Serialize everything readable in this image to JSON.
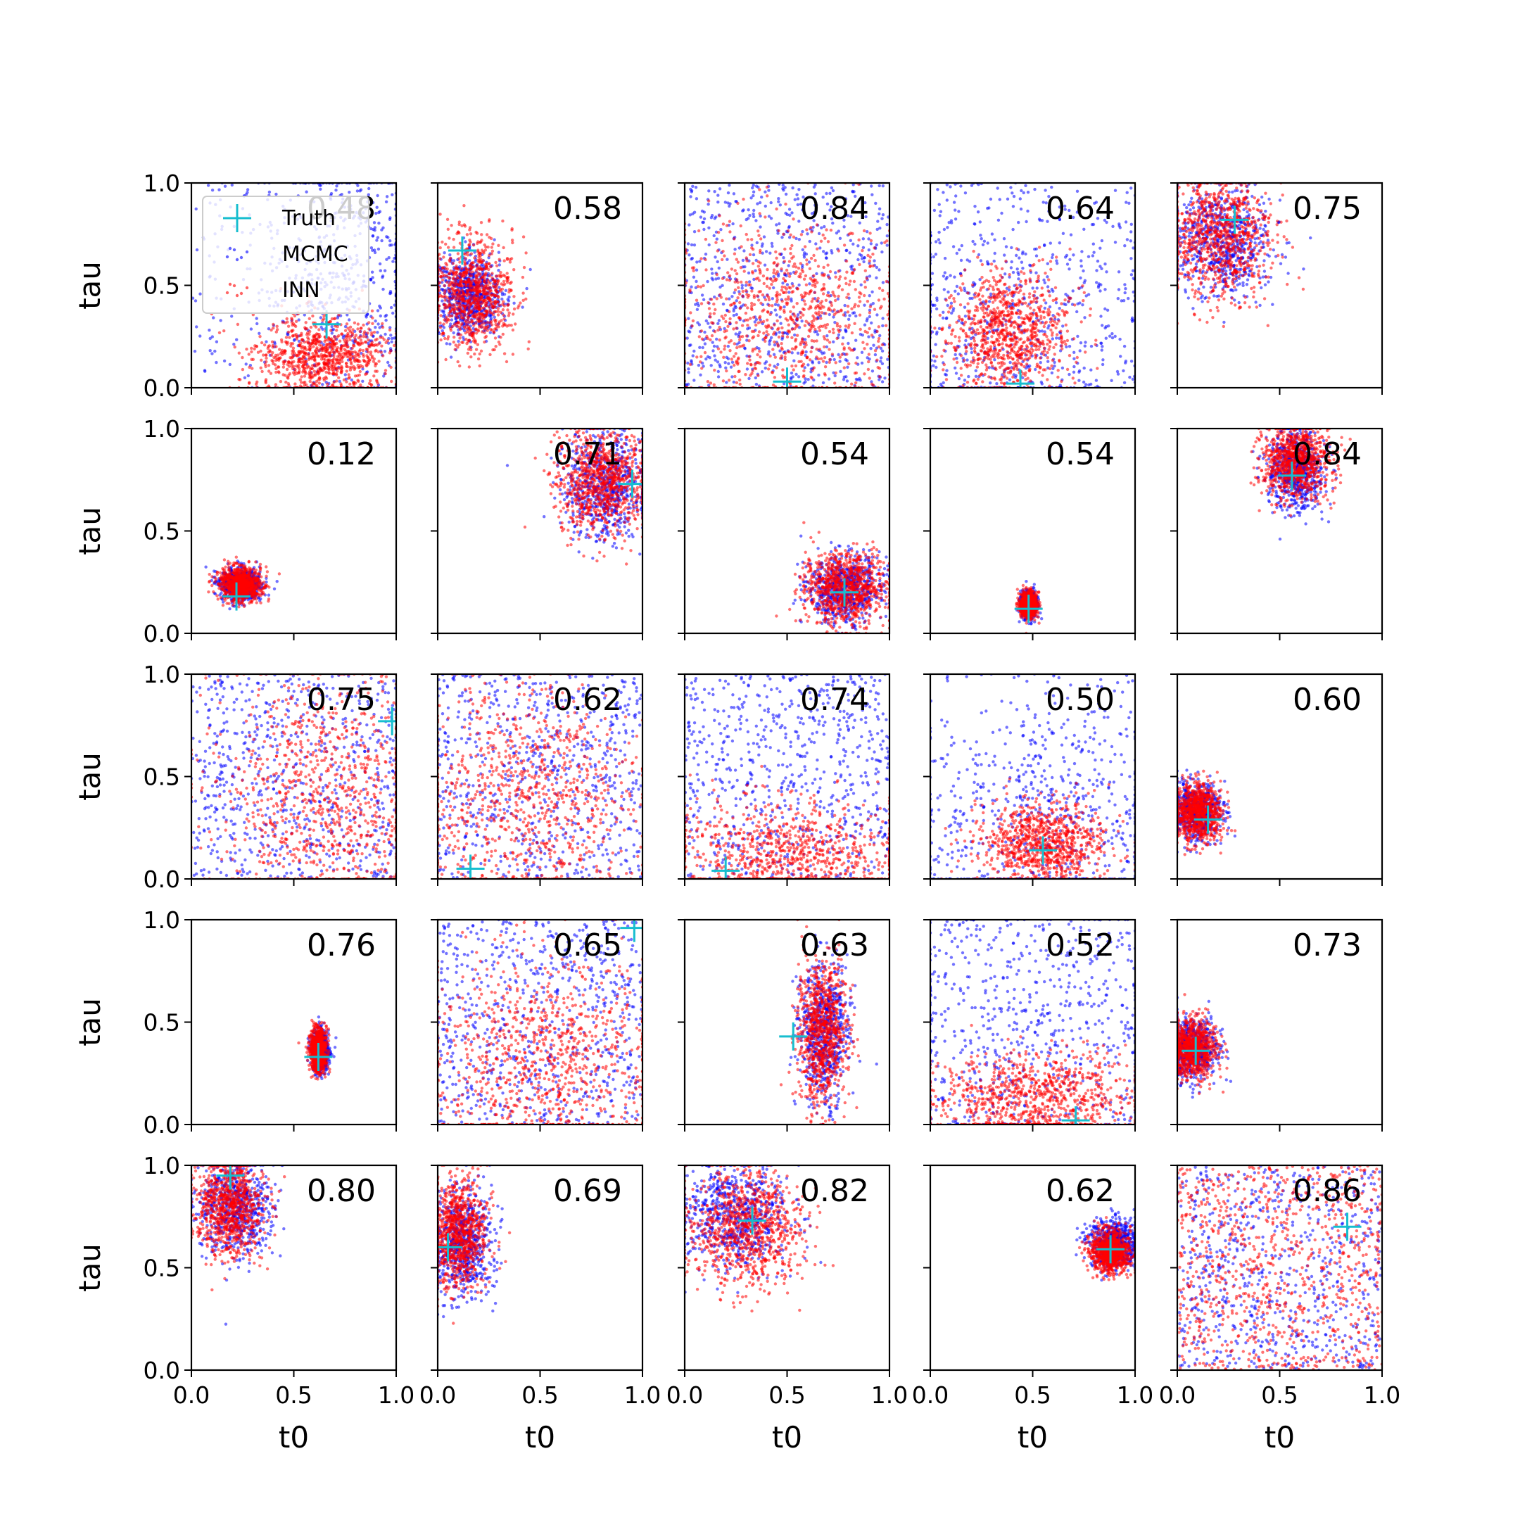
{
  "chart_data": {
    "type": "scatter",
    "layout": "5x5 grid of scatter subplots",
    "xlabel": "t0",
    "ylabel": "tau",
    "xlim": [
      0,
      1
    ],
    "ylim": [
      0,
      1
    ],
    "x_ticks": [
      "0.0",
      "0.5",
      "1.0"
    ],
    "y_ticks": [
      "0.0",
      "0.5",
      "1.0"
    ],
    "grid": false,
    "legend_position": "top-left (first subplot)",
    "legend": [
      {
        "label": "Truth",
        "marker": "+",
        "color": "#17becf"
      },
      {
        "label": "MCMC",
        "marker": "point",
        "color": "#0000ff"
      },
      {
        "label": "INN",
        "marker": "point",
        "color": "#ff0000"
      }
    ],
    "panels": [
      {
        "value": "0.48",
        "truth": [
          0.66,
          0.31
        ],
        "mcmc": {
          "cx": 0.75,
          "cy": 0.55,
          "sx": 0.2,
          "sy": 0.35,
          "uniform": 0.3
        },
        "inn": {
          "cx": 0.64,
          "cy": 0.15,
          "sx": 0.16,
          "sy": 0.1
        }
      },
      {
        "value": "0.58",
        "truth": [
          0.12,
          0.67
        ],
        "mcmc": {
          "cx": 0.15,
          "cy": 0.45,
          "sx": 0.08,
          "sy": 0.1
        },
        "inn": {
          "cx": 0.17,
          "cy": 0.46,
          "sx": 0.1,
          "sy": 0.13
        }
      },
      {
        "value": "0.84",
        "truth": [
          0.5,
          0.03
        ],
        "mcmc": {
          "cx": 0.5,
          "cy": 0.5,
          "sx": 0.5,
          "sy": 0.5,
          "uniform": 1.0
        },
        "inn": {
          "cx": 0.5,
          "cy": 0.35,
          "sx": 0.28,
          "sy": 0.24
        }
      },
      {
        "value": "0.64",
        "truth": [
          0.44,
          0.02
        ],
        "mcmc": {
          "cx": 0.35,
          "cy": 0.3,
          "sx": 0.3,
          "sy": 0.3,
          "uniform": 0.5
        },
        "inn": {
          "cx": 0.38,
          "cy": 0.27,
          "sx": 0.15,
          "sy": 0.14
        }
      },
      {
        "value": "0.75",
        "truth": [
          0.28,
          0.82
        ],
        "mcmc": {
          "cx": 0.22,
          "cy": 0.72,
          "sx": 0.12,
          "sy": 0.14
        },
        "inn": {
          "cx": 0.2,
          "cy": 0.74,
          "sx": 0.13,
          "sy": 0.15
        }
      },
      {
        "value": "0.12",
        "truth": [
          0.22,
          0.18
        ],
        "mcmc": {
          "cx": 0.24,
          "cy": 0.24,
          "sx": 0.05,
          "sy": 0.04
        },
        "inn": {
          "cx": 0.24,
          "cy": 0.24,
          "sx": 0.05,
          "sy": 0.04
        }
      },
      {
        "value": "0.71",
        "truth": [
          0.95,
          0.73
        ],
        "mcmc": {
          "cx": 0.82,
          "cy": 0.72,
          "sx": 0.1,
          "sy": 0.13
        },
        "inn": {
          "cx": 0.8,
          "cy": 0.74,
          "sx": 0.11,
          "sy": 0.13
        }
      },
      {
        "value": "0.54",
        "truth": [
          0.78,
          0.2
        ],
        "mcmc": {
          "cx": 0.78,
          "cy": 0.22,
          "sx": 0.09,
          "sy": 0.08
        },
        "inn": {
          "cx": 0.78,
          "cy": 0.22,
          "sx": 0.1,
          "sy": 0.09
        }
      },
      {
        "value": "0.54",
        "truth": [
          0.48,
          0.12
        ],
        "mcmc": {
          "cx": 0.48,
          "cy": 0.14,
          "sx": 0.02,
          "sy": 0.03
        },
        "inn": {
          "cx": 0.48,
          "cy": 0.14,
          "sx": 0.02,
          "sy": 0.03
        }
      },
      {
        "value": "0.84",
        "truth": [
          0.56,
          0.77
        ],
        "mcmc": {
          "cx": 0.58,
          "cy": 0.8,
          "sx": 0.07,
          "sy": 0.1
        },
        "inn": {
          "cx": 0.58,
          "cy": 0.84,
          "sx": 0.08,
          "sy": 0.09
        }
      },
      {
        "value": "0.75",
        "truth": [
          0.98,
          0.77
        ],
        "mcmc": {
          "cx": 0.5,
          "cy": 0.5,
          "sx": 0.5,
          "sy": 0.5,
          "uniform": 1.0
        },
        "inn": {
          "cx": 0.65,
          "cy": 0.4,
          "sx": 0.28,
          "sy": 0.3
        }
      },
      {
        "value": "0.62",
        "truth": [
          0.16,
          0.05
        ],
        "mcmc": {
          "cx": 0.5,
          "cy": 0.5,
          "sx": 0.5,
          "sy": 0.5,
          "uniform": 1.0
        },
        "inn": {
          "cx": 0.42,
          "cy": 0.4,
          "sx": 0.28,
          "sy": 0.28
        }
      },
      {
        "value": "0.74",
        "truth": [
          0.2,
          0.04
        ],
        "mcmc": {
          "cx": 0.5,
          "cy": 0.5,
          "sx": 0.5,
          "sy": 0.5,
          "uniform": 1.0
        },
        "inn": {
          "cx": 0.5,
          "cy": 0.12,
          "sx": 0.3,
          "sy": 0.13
        }
      },
      {
        "value": "0.50",
        "truth": [
          0.55,
          0.14
        ],
        "mcmc": {
          "cx": 0.55,
          "cy": 0.3,
          "sx": 0.3,
          "sy": 0.3,
          "uniform": 0.15
        },
        "inn": {
          "cx": 0.55,
          "cy": 0.17,
          "sx": 0.16,
          "sy": 0.1
        }
      },
      {
        "value": "0.60",
        "truth": [
          0.15,
          0.29
        ],
        "mcmc": {
          "cx": 0.09,
          "cy": 0.33,
          "sx": 0.06,
          "sy": 0.07
        },
        "inn": {
          "cx": 0.1,
          "cy": 0.33,
          "sx": 0.06,
          "sy": 0.07
        }
      },
      {
        "value": "0.76",
        "truth": [
          0.62,
          0.33
        ],
        "mcmc": {
          "cx": 0.63,
          "cy": 0.36,
          "sx": 0.02,
          "sy": 0.05
        },
        "inn": {
          "cx": 0.62,
          "cy": 0.36,
          "sx": 0.02,
          "sy": 0.05
        }
      },
      {
        "value": "0.65",
        "truth": [
          0.96,
          0.96
        ],
        "mcmc": {
          "cx": 0.5,
          "cy": 0.5,
          "sx": 0.5,
          "sy": 0.5,
          "uniform": 1.0
        },
        "inn": {
          "cx": 0.52,
          "cy": 0.33,
          "sx": 0.28,
          "sy": 0.25
        }
      },
      {
        "value": "0.63",
        "truth": [
          0.53,
          0.43
        ],
        "mcmc": {
          "cx": 0.68,
          "cy": 0.45,
          "sx": 0.06,
          "sy": 0.17
        },
        "inn": {
          "cx": 0.67,
          "cy": 0.45,
          "sx": 0.06,
          "sy": 0.17
        }
      },
      {
        "value": "0.52",
        "truth": [
          0.71,
          0.02
        ],
        "mcmc": {
          "cx": 0.5,
          "cy": 0.4,
          "sx": 0.4,
          "sy": 0.4,
          "uniform": 0.6
        },
        "inn": {
          "cx": 0.5,
          "cy": 0.12,
          "sx": 0.24,
          "sy": 0.12
        }
      },
      {
        "value": "0.73",
        "truth": [
          0.09,
          0.36
        ],
        "mcmc": {
          "cx": 0.07,
          "cy": 0.37,
          "sx": 0.06,
          "sy": 0.07
        },
        "inn": {
          "cx": 0.07,
          "cy": 0.37,
          "sx": 0.06,
          "sy": 0.07
        }
      },
      {
        "value": "0.80",
        "truth": [
          0.19,
          0.95
        ],
        "mcmc": {
          "cx": 0.22,
          "cy": 0.8,
          "sx": 0.09,
          "sy": 0.12
        },
        "inn": {
          "cx": 0.19,
          "cy": 0.8,
          "sx": 0.08,
          "sy": 0.12
        }
      },
      {
        "value": "0.69",
        "truth": [
          0.05,
          0.6
        ],
        "mcmc": {
          "cx": 0.12,
          "cy": 0.62,
          "sx": 0.07,
          "sy": 0.13
        },
        "inn": {
          "cx": 0.1,
          "cy": 0.66,
          "sx": 0.07,
          "sy": 0.13
        }
      },
      {
        "value": "0.82",
        "truth": [
          0.33,
          0.73
        ],
        "mcmc": {
          "cx": 0.25,
          "cy": 0.75,
          "sx": 0.13,
          "sy": 0.13
        },
        "inn": {
          "cx": 0.3,
          "cy": 0.7,
          "sx": 0.14,
          "sy": 0.14
        }
      },
      {
        "value": "0.62",
        "truth": [
          0.88,
          0.59
        ],
        "mcmc": {
          "cx": 0.9,
          "cy": 0.62,
          "sx": 0.06,
          "sy": 0.06
        },
        "inn": {
          "cx": 0.88,
          "cy": 0.58,
          "sx": 0.05,
          "sy": 0.05
        }
      },
      {
        "value": "0.86",
        "truth": [
          0.83,
          0.7
        ],
        "mcmc": {
          "cx": 0.5,
          "cy": 0.5,
          "sx": 0.5,
          "sy": 0.5,
          "uniform": 1.0
        },
        "inn": {
          "cx": 0.5,
          "cy": 0.5,
          "sx": 0.5,
          "sy": 0.5,
          "uniform": 1.0
        }
      }
    ]
  }
}
